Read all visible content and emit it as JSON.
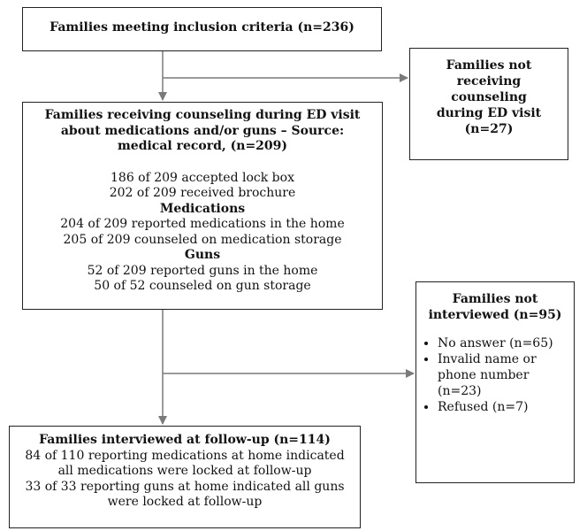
{
  "box_inclusion": {
    "title": "Families meeting inclusion criteria (n=236)"
  },
  "box_not_counseled": {
    "title_lines": [
      "Families not",
      "receiving",
      "counseling",
      "during ED visit",
      "(n=27)"
    ]
  },
  "box_counseled": {
    "title_lines": [
      "Families receiving counseling during ED visit",
      "about medications and/or guns – Source:",
      "medical record, (n=209)"
    ],
    "general": [
      "186 of 209 accepted lock box",
      "202 of 209 received brochure"
    ],
    "medications_heading": "Medications",
    "medications": [
      "204 of 209 reported medications in the home",
      "205 of 209 counseled on medication storage"
    ],
    "guns_heading": "Guns",
    "guns": [
      "52 of 209 reported guns in the home",
      "50 of 52 counseled on gun storage"
    ]
  },
  "box_not_interviewed": {
    "title_lines": [
      "Families not",
      "interviewed (n=95)"
    ],
    "reasons": [
      [
        "No answer (n=65)"
      ],
      [
        "Invalid name or",
        "phone number",
        "(n=23)"
      ],
      [
        "Refused (n=7)"
      ]
    ]
  },
  "box_interviewed": {
    "title": "Families interviewed at follow-up (n=114)",
    "lines": [
      "84 of 110 reporting medications at home indicated",
      "all medications were locked at follow-up",
      "33 of 33 reporting guns at home indicated all guns",
      "were locked at follow-up"
    ]
  }
}
